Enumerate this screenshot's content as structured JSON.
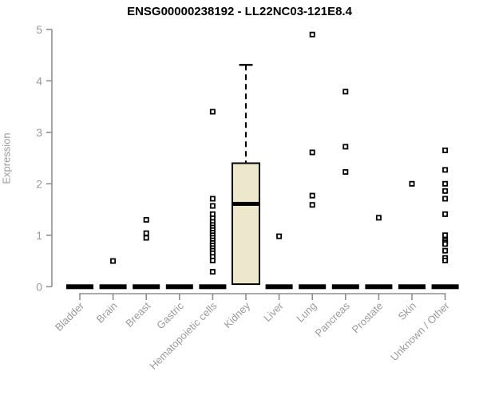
{
  "chart_data": {
    "type": "box",
    "title": "ENSG00000238192 - LL22NC03-121E8.4",
    "ylabel": "Expression",
    "xlabel": "",
    "ylim": [
      0,
      5
    ],
    "yticks": [
      0,
      1,
      2,
      3,
      4,
      5
    ],
    "grid": false,
    "legend": "none",
    "colors": {
      "box_fill": "#ece7cd",
      "box_stroke": "#000000",
      "axis": "#8f8f8f",
      "tick_label": "#9a9a9a",
      "title": "#000000",
      "outlier_stroke": "#000000",
      "outlier_fill": "#ffffff"
    },
    "categories": [
      "Bladder",
      "Brain",
      "Breast",
      "Gastric",
      "Hematopoietic cells",
      "Kidney",
      "Liver",
      "Lung",
      "Pancreas",
      "Prostate",
      "Skin",
      "Unknown / Other"
    ],
    "boxes": [
      {
        "category": "Bladder",
        "low": 0,
        "q1": 0,
        "median": 0,
        "q3": 0,
        "high": 0,
        "outliers": []
      },
      {
        "category": "Brain",
        "low": 0,
        "q1": 0,
        "median": 0,
        "q3": 0,
        "high": 0,
        "outliers": [
          0.5
        ]
      },
      {
        "category": "Breast",
        "low": 0,
        "q1": 0,
        "median": 0,
        "q3": 0,
        "high": 0,
        "outliers": [
          1.3,
          1.04,
          0.95
        ]
      },
      {
        "category": "Gastric",
        "low": 0,
        "q1": 0,
        "median": 0,
        "q3": 0,
        "high": 0,
        "outliers": []
      },
      {
        "category": "Hematopoietic cells",
        "low": 0,
        "q1": 0,
        "median": 0,
        "q3": 0,
        "high": 0,
        "outliers": [
          3.4,
          1.71,
          1.57,
          1.41,
          1.33,
          1.26,
          1.2,
          1.15,
          1.1,
          1.05,
          1.0,
          0.95,
          0.9,
          0.85,
          0.8,
          0.75,
          0.7,
          0.65,
          0.58,
          0.51,
          0.29
        ]
      },
      {
        "category": "Kidney",
        "low": 0.05,
        "q1": 0.05,
        "median": 1.61,
        "q3": 2.4,
        "high": 4.31,
        "outliers": []
      },
      {
        "category": "Liver",
        "low": 0,
        "q1": 0,
        "median": 0,
        "q3": 0,
        "high": 0,
        "outliers": [
          0.98
        ]
      },
      {
        "category": "Lung",
        "low": 0,
        "q1": 0,
        "median": 0,
        "q3": 0,
        "high": 0,
        "outliers": [
          4.9,
          2.61,
          1.77,
          1.59
        ]
      },
      {
        "category": "Pancreas",
        "low": 0,
        "q1": 0,
        "median": 0,
        "q3": 0,
        "high": 0,
        "outliers": [
          3.79,
          2.72,
          2.23
        ]
      },
      {
        "category": "Prostate",
        "low": 0,
        "q1": 0,
        "median": 0,
        "q3": 0,
        "high": 0,
        "outliers": [
          1.34
        ]
      },
      {
        "category": "Skin",
        "low": 0,
        "q1": 0,
        "median": 0,
        "q3": 0,
        "high": 0,
        "outliers": [
          2.0
        ]
      },
      {
        "category": "Unknown / Other",
        "low": 0,
        "q1": 0,
        "median": 0,
        "q3": 0,
        "high": 0,
        "outliers": [
          2.65,
          2.27,
          2.0,
          1.86,
          1.71,
          1.41,
          1.0,
          0.9,
          0.86,
          0.83,
          0.7,
          0.56,
          0.51
        ]
      }
    ]
  }
}
